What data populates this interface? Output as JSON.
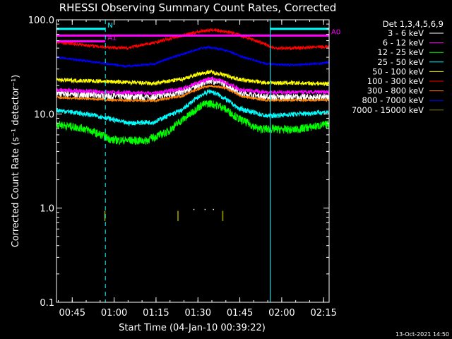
{
  "chart_data": {
    "type": "line",
    "title": "RHESSI Observing Summary Count Rates, Corrected",
    "xlabel": "Start Time (04-Jan-10 00:39:22)",
    "ylabel": "Corrected Count Rate (s⁻¹ detector⁻¹)",
    "x_ticks": [
      "00:45",
      "01:00",
      "01:15",
      "01:30",
      "01:45",
      "02:00",
      "02:15"
    ],
    "y_ticks": [
      "0.1",
      "1.0",
      "10.0",
      "100.0"
    ],
    "yscale": "log",
    "ylim": [
      0.1,
      100
    ],
    "xlim_minutes": [
      0,
      97.6
    ],
    "grid": false,
    "legend": {
      "placement": "right",
      "title": "Det 1,3,4,5,6,9",
      "entries": [
        "3 - 6 keV",
        "6 - 12 keV",
        "12 - 25 keV",
        "25 - 50 keV",
        "50 - 100 keV",
        "100 - 300 keV",
        "300 - 800 keV",
        "800 - 7000 keV",
        "7000 - 15000 keV"
      ]
    },
    "series": [
      {
        "name": "3 - 6 keV",
        "color": "#ffffff",
        "profile": [
          [
            0,
            16.5
          ],
          [
            20,
            15.5
          ],
          [
            35,
            15
          ],
          [
            45,
            17
          ],
          [
            52,
            21
          ],
          [
            55,
            23
          ],
          [
            60,
            21
          ],
          [
            66,
            16.5
          ],
          [
            75,
            15
          ],
          [
            97.6,
            15
          ]
        ],
        "noise": 0.09
      },
      {
        "name": "6 - 12 keV",
        "color": "#ff00ff",
        "profile": [
          [
            0,
            18
          ],
          [
            20,
            17
          ],
          [
            35,
            16.5
          ],
          [
            45,
            18.5
          ],
          [
            52,
            22
          ],
          [
            55,
            24
          ],
          [
            60,
            22
          ],
          [
            66,
            18
          ],
          [
            75,
            17
          ],
          [
            97.6,
            17
          ]
        ],
        "noise": 0.05
      },
      {
        "name": "12 - 25 keV",
        "color": "#00ff00",
        "profile": [
          [
            0,
            7.8
          ],
          [
            10,
            7
          ],
          [
            20,
            5.3
          ],
          [
            32,
            5.2
          ],
          [
            40,
            6.5
          ],
          [
            47,
            9.5
          ],
          [
            52,
            12.5
          ],
          [
            55,
            13
          ],
          [
            59,
            12
          ],
          [
            65,
            9
          ],
          [
            72,
            7
          ],
          [
            85,
            6.8
          ],
          [
            97.6,
            7.8
          ]
        ],
        "noise": 0.1
      },
      {
        "name": "25 - 50 keV",
        "color": "#00ffff",
        "profile": [
          [
            0,
            11
          ],
          [
            15,
            9.5
          ],
          [
            25,
            8
          ],
          [
            35,
            8.2
          ],
          [
            45,
            11
          ],
          [
            52,
            16
          ],
          [
            55,
            17.5
          ],
          [
            58,
            16
          ],
          [
            65,
            11.5
          ],
          [
            75,
            9.5
          ],
          [
            97.6,
            10.5
          ]
        ],
        "noise": 0.06
      },
      {
        "name": "50 - 100 keV",
        "color": "#ffff00",
        "profile": [
          [
            0,
            23
          ],
          [
            20,
            22
          ],
          [
            35,
            21
          ],
          [
            45,
            23.5
          ],
          [
            52,
            27
          ],
          [
            55,
            28
          ],
          [
            60,
            26
          ],
          [
            66,
            23
          ],
          [
            75,
            21.5
          ],
          [
            97.6,
            21
          ]
        ],
        "noise": 0.05
      },
      {
        "name": "100 - 300 keV",
        "color": "#ff0000",
        "profile": [
          [
            0,
            58
          ],
          [
            15,
            52
          ],
          [
            25,
            50
          ],
          [
            35,
            57
          ],
          [
            45,
            68
          ],
          [
            52,
            76
          ],
          [
            56,
            78
          ],
          [
            62,
            74
          ],
          [
            70,
            62
          ],
          [
            78,
            50
          ],
          [
            85,
            50
          ],
          [
            97.6,
            52
          ]
        ],
        "noise": 0.04
      },
      {
        "name": "300 - 800 keV",
        "color": "#ff8000",
        "profile": [
          [
            0,
            15
          ],
          [
            20,
            14
          ],
          [
            35,
            13.8
          ],
          [
            45,
            15.5
          ],
          [
            52,
            19
          ],
          [
            55,
            20
          ],
          [
            60,
            19
          ],
          [
            66,
            15.5
          ],
          [
            75,
            14
          ],
          [
            97.6,
            14
          ]
        ],
        "noise": 0.03
      },
      {
        "name": "800 - 7000 keV",
        "color": "#0000ff",
        "profile": [
          [
            0,
            40
          ],
          [
            15,
            35
          ],
          [
            25,
            32
          ],
          [
            35,
            34
          ],
          [
            45,
            43
          ],
          [
            52,
            50
          ],
          [
            55,
            51
          ],
          [
            60,
            48
          ],
          [
            67,
            40
          ],
          [
            75,
            34
          ],
          [
            85,
            33
          ],
          [
            97.6,
            35
          ]
        ],
        "noise": 0.025
      },
      {
        "name": "7000 - 15000 keV",
        "color": "#808000",
        "spikes": [
          [
            17.3,
            0.73
          ],
          [
            43.5,
            0.73
          ],
          [
            59.5,
            0.73
          ]
        ],
        "dots": [
          [
            49,
            0.98
          ],
          [
            53,
            0.98
          ],
          [
            56,
            0.98
          ]
        ]
      }
    ],
    "flags": [
      {
        "label": "N",
        "color": "#00ffff",
        "y": 80,
        "segments": [
          [
            0,
            17.5
          ],
          [
            76.5,
            97.6
          ]
        ]
      },
      {
        "label": "A0",
        "color": "#ff00ff",
        "y": 68,
        "segments": [
          [
            0,
            97.6
          ]
        ]
      },
      {
        "label": "A1",
        "color": "#ff00ff",
        "y": 59,
        "segments": [
          [
            0,
            17.5
          ]
        ]
      }
    ],
    "night_boundaries_minutes": {
      "solid": [
        0,
        76.5
      ],
      "dashed": [
        17.5,
        97.6
      ]
    }
  },
  "footer": {
    "stamp": "13-Oct-2021 14:50"
  }
}
